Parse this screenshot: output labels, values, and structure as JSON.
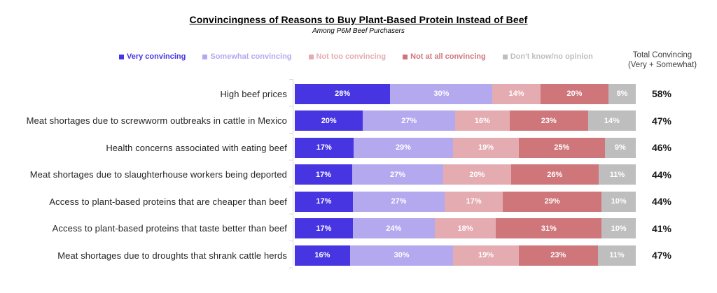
{
  "title": "Convincingness of Reasons to Buy Plant-Based Protein Instead of Beef",
  "subtitle": "Among P6M Beef Purchasers",
  "totals_header": {
    "line1": "Total Convincing",
    "line2": "(Very + Somewhat)"
  },
  "chart_data": {
    "type": "bar",
    "orientation": "horizontal",
    "stacked": true,
    "normalized_to_100": true,
    "unit": "%",
    "grid": false,
    "legend_position": "top",
    "categories": [
      "High beef prices",
      "Meat shortages due to screwworm outbreaks in cattle in Mexico",
      "Health concerns associated with eating beef",
      "Meat shortages due to slaughterhouse workers being deported",
      "Access to plant-based proteins that are cheaper than beef",
      "Access to plant-based proteins that taste better than beef",
      "Meat shortages due to droughts that shrank cattle herds"
    ],
    "series": [
      {
        "name": "Very convincing",
        "color": "#4835E2",
        "values": [
          28,
          20,
          17,
          17,
          17,
          17,
          16
        ]
      },
      {
        "name": "Somewhat convincing",
        "color": "#B4A8EF",
        "values": [
          30,
          27,
          29,
          27,
          27,
          24,
          30
        ]
      },
      {
        "name": "Not too convincing",
        "color": "#E4ACB1",
        "values": [
          14,
          16,
          19,
          20,
          17,
          18,
          19
        ]
      },
      {
        "name": "Not at all convincing",
        "color": "#CF767B",
        "values": [
          20,
          23,
          25,
          26,
          29,
          31,
          23
        ]
      },
      {
        "name": "Don't know/no opinion",
        "color": "#BEBEBE",
        "values": [
          8,
          14,
          9,
          11,
          10,
          10,
          11
        ]
      }
    ],
    "totals": {
      "name": "Total Convincing (Very + Somewhat)",
      "values": [
        58,
        47,
        46,
        44,
        44,
        41,
        47
      ]
    }
  }
}
